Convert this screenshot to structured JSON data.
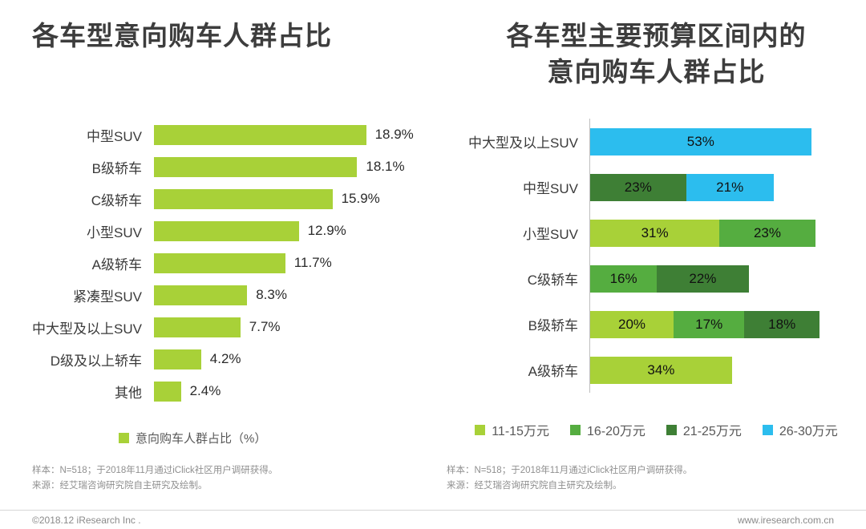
{
  "chart_data": [
    {
      "type": "bar",
      "orientation": "horizontal",
      "title": "各车型意向购车人群占比",
      "categories": [
        "中型SUV",
        "B级轿车",
        "C级轿车",
        "小型SUV",
        "A级轿车",
        "紧凑型SUV",
        "中大型及以上SUV",
        "D级及以上轿车",
        "其他"
      ],
      "values": [
        18.9,
        18.1,
        15.9,
        12.9,
        11.7,
        8.3,
        7.7,
        4.2,
        2.4
      ],
      "unit": "%",
      "bar_color": "#a8d138",
      "legend": [
        {
          "label": "意向购车人群占比（%）",
          "color": "#a8d138"
        }
      ],
      "xlim": [
        0,
        20
      ],
      "grid": false,
      "legend_position": "bottom"
    },
    {
      "type": "bar",
      "orientation": "horizontal",
      "stacked": true,
      "title": "各车型主要预算区间内的意向购车人群占比",
      "title_lines": [
        "各车型主要预算区间内的",
        "意向购车人群占比"
      ],
      "categories": [
        "中大型及以上SUV",
        "中型SUV",
        "小型SUV",
        "C级轿车",
        "B级轿车",
        "A级轿车"
      ],
      "series": [
        {
          "name": "11-15万元",
          "color": "#a8d138",
          "values": [
            0,
            0,
            31,
            0,
            20,
            34
          ]
        },
        {
          "name": "16-20万元",
          "color": "#55ad40",
          "values": [
            0,
            0,
            23,
            16,
            17,
            0
          ]
        },
        {
          "name": "21-25万元",
          "color": "#3e7f35",
          "values": [
            0,
            23,
            0,
            22,
            18,
            0
          ]
        },
        {
          "name": "26-30万元",
          "color": "#2cbdee",
          "values": [
            53,
            21,
            0,
            0,
            0,
            0
          ]
        }
      ],
      "unit": "%",
      "xlim": [
        0,
        60
      ],
      "grid": false,
      "legend_position": "bottom"
    }
  ],
  "notes": {
    "sample": "样本：N=518；于2018年11月通过iClick社区用户调研获得。",
    "source": "来源：经艾瑞咨询研究院自主研究及绘制。"
  },
  "footer": {
    "left": "©2018.12 iResearch Inc .",
    "right": "www.iresearch.com.cn"
  }
}
